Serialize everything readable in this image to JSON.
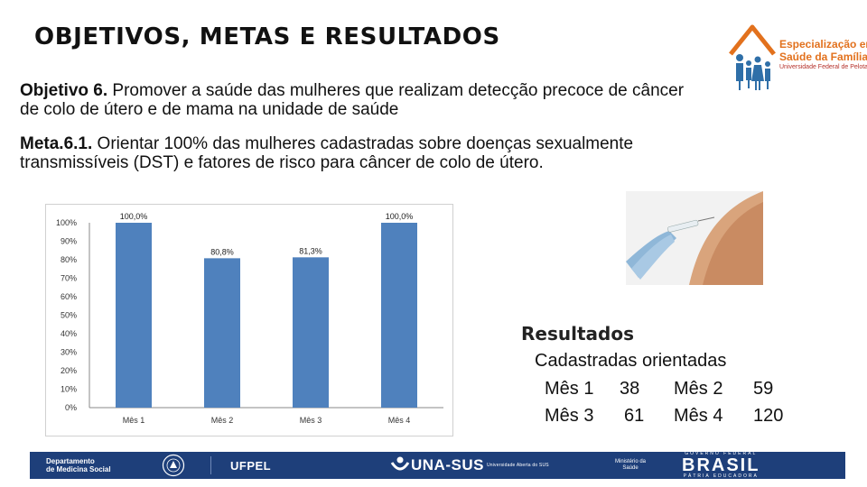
{
  "title": "OBJETIVOS, METAS E RESULTADOS",
  "objective": {
    "label": "Objetivo 6.",
    "text": " Promover a saúde das mulheres que realizam detecção precoce de câncer de colo de útero e de mama  na unidade de saúde"
  },
  "goal": {
    "label": "Meta.6.1.",
    "text": " Orientar 100% das mulheres cadastradas sobre doenças sexualmente transmissíveis (DST) e fatores de risco para câncer de colo de útero."
  },
  "logo": {
    "line1": "Especialização em",
    "line2": "Saúde da Família",
    "line3": "Universidade Federal de Pelotas"
  },
  "chart_data": {
    "type": "bar",
    "categories": [
      "Mês 1",
      "Mês 2",
      "Mês 3",
      "Mês 4"
    ],
    "values": [
      100.0,
      80.8,
      81.3,
      100.0
    ],
    "data_labels": [
      "100,0%",
      "80,8%",
      "81,3%",
      "100,0%"
    ],
    "y_ticks": [
      "0%",
      "10%",
      "20%",
      "30%",
      "40%",
      "50%",
      "60%",
      "70%",
      "80%",
      "90%",
      "100%"
    ],
    "ylim": [
      0,
      100
    ],
    "bar_color": "#4f81bd",
    "grid": false,
    "title": "",
    "xlabel": "",
    "ylabel": ""
  },
  "results": {
    "title": "Resultados",
    "subtitle": "Cadastradas orientadas",
    "months": [
      {
        "label": "Mês 1",
        "value": "38"
      },
      {
        "label": "Mês 2",
        "value": "59"
      },
      {
        "label": "Mês 3",
        "value": "61"
      },
      {
        "label": "Mês 4",
        "value": "120"
      }
    ]
  },
  "footer": {
    "dept_line1": "Departamento",
    "dept_line2": "de Medicina Social",
    "ufpel": "UFPEL",
    "unasus": "UNA-SUS",
    "unasus_sub": "Universidade Aberta do SUS",
    "ministry_line1": "Ministério da",
    "ministry_line2": "Saúde",
    "brasil_top": "GOVERNO FEDERAL",
    "brasil": "BRASIL",
    "brasil_bottom": "PÁTRIA EDUCADORA",
    "bg_color": "#1e3f7a"
  }
}
